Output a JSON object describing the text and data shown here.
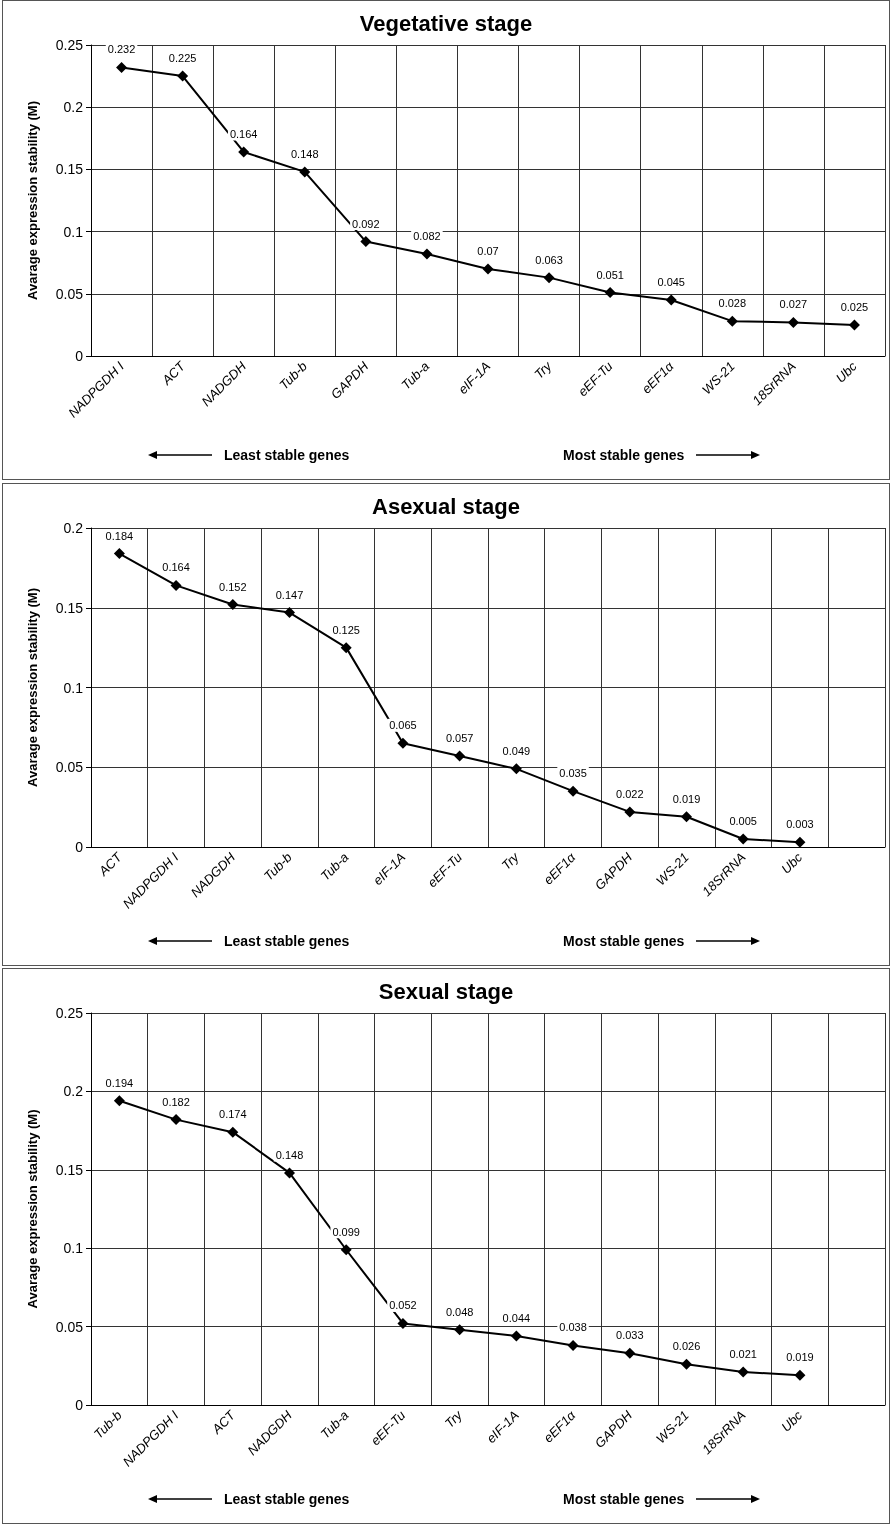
{
  "chart_data": [
    {
      "type": "line",
      "title": "Vegetative stage",
      "ylabel": "Avarage expression stability (M)",
      "categories": [
        "NADPGDH I",
        "ACT",
        "NADGDH",
        "Tub-b",
        "GAPDH",
        "Tub-a",
        "eIF-1A",
        "Try",
        "eEF-Tu",
        "eEF1α",
        "WS-21",
        "18SrRNA",
        "Ubc"
      ],
      "series": [
        {
          "color": "#000000",
          "values": [
            0.232,
            0.225,
            0.164,
            0.148,
            0.092,
            0.082,
            0.07,
            0.063,
            0.051,
            0.045,
            0.028,
            0.027,
            0.025
          ]
        }
      ],
      "ylim": [
        0,
        0.25
      ],
      "yticks": [
        0,
        0.05,
        0.1,
        0.15,
        0.2,
        0.25
      ],
      "grid": true,
      "marker": "diamond",
      "line_style": "solid",
      "data_labels": true,
      "annotations": [
        "Least stable genes",
        "Most stable genes"
      ]
    },
    {
      "type": "line",
      "title": "Asexual stage",
      "ylabel": "Avarage expression stability (M)",
      "categories": [
        "ACT",
        "NADPGDH I",
        "NADGDH",
        "Tub-b",
        "Tub-a",
        "eIF-1A",
        "eEF-Tu",
        "Try",
        "eEF1α",
        "GAPDH",
        "WS-21",
        "18SrRNA",
        "Ubc",
        null
      ],
      "series": [
        {
          "color": "#000000",
          "values": [
            0.184,
            0.164,
            0.152,
            0.147,
            0.125,
            0.065,
            0.057,
            0.049,
            0.035,
            0.022,
            0.019,
            0.005,
            0.003,
            null
          ]
        }
      ],
      "ylim": [
        0,
        0.2
      ],
      "yticks": [
        0,
        0.05,
        0.1,
        0.15,
        0.2
      ],
      "grid": true,
      "marker": "diamond",
      "line_style": "solid",
      "data_labels": true,
      "annotations": [
        "Least stable genes",
        "Most stable genes"
      ]
    },
    {
      "type": "line",
      "title": "Sexual stage",
      "ylabel": "Avarage expression stability (M)",
      "categories": [
        "Tub-b",
        "NADPGDH I",
        "ACT",
        "NADGDH",
        "Tub-a",
        "eEF-Tu",
        "Try",
        "eIF-1A",
        "eEF1α",
        "GAPDH",
        "WS-21",
        "18SrRNA",
        "Ubc",
        null
      ],
      "series": [
        {
          "color": "#000000",
          "values": [
            0.194,
            0.182,
            0.174,
            0.148,
            0.099,
            0.052,
            0.048,
            0.044,
            0.038,
            0.033,
            0.026,
            0.021,
            0.019,
            null
          ]
        }
      ],
      "ylim": [
        0,
        0.25
      ],
      "yticks": [
        0,
        0.05,
        0.1,
        0.15,
        0.2,
        0.25
      ],
      "grid": true,
      "marker": "diamond",
      "line_style": "solid",
      "data_labels": true,
      "annotations": [
        "Least stable genes",
        "Most stable genes"
      ]
    }
  ]
}
